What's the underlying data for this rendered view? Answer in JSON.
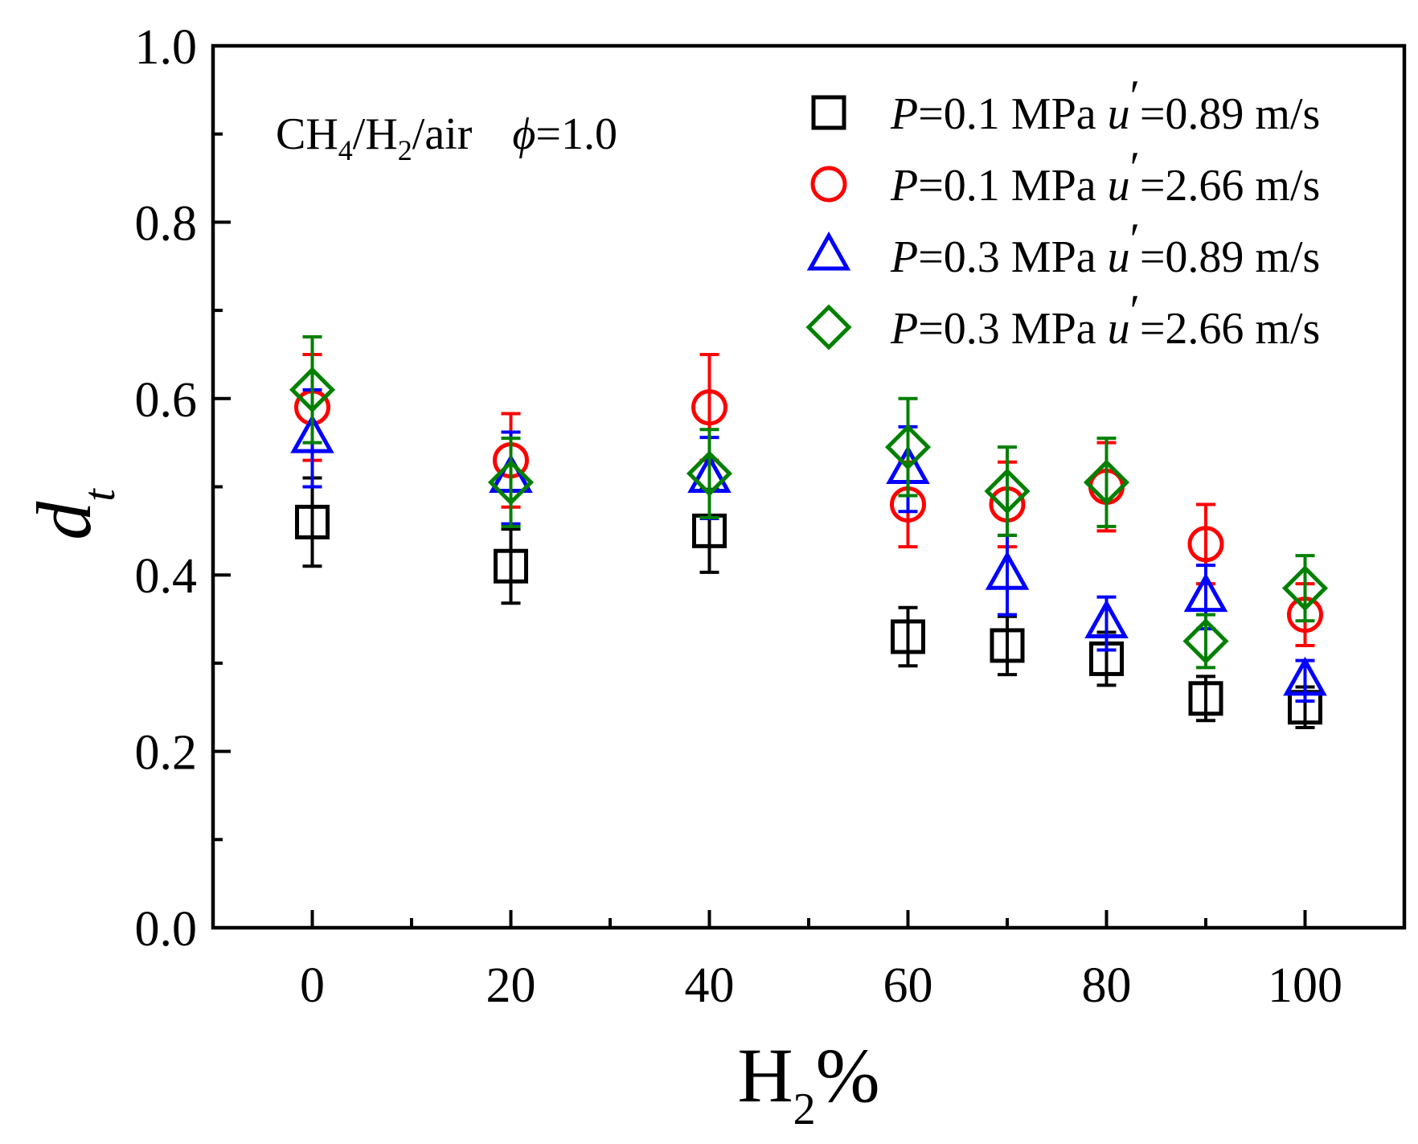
{
  "chart_data": {
    "type": "scatter",
    "title": "",
    "xlabel_main": "H",
    "xlabel_sub": "2",
    "xlabel_tail": "%",
    "ylabel_main": "d",
    "ylabel_sub": "t",
    "xlim": [
      -10,
      110
    ],
    "ylim": [
      0.0,
      1.0
    ],
    "x_ticks": [
      0,
      20,
      40,
      60,
      80,
      100
    ],
    "x_tick_labels": [
      "0",
      "20",
      "40",
      "60",
      "80",
      "100"
    ],
    "x_minor_ticks": [
      10,
      30,
      50,
      70,
      90
    ],
    "y_ticks": [
      0.0,
      0.2,
      0.4,
      0.6,
      0.8,
      1.0
    ],
    "y_tick_labels": [
      "0.0",
      "0.2",
      "0.4",
      "0.6",
      "0.8",
      "1.0"
    ],
    "y_minor_ticks": [
      0.1,
      0.3,
      0.5,
      0.7,
      0.9
    ],
    "grid": false,
    "legend_position": "top-right",
    "annotation": {
      "a": "CH",
      "a_sub": "4",
      "b": "/H",
      "b_sub": "2",
      "c": "/air",
      "phi": "ϕ",
      "phi_val": "=1.0"
    },
    "series": [
      {
        "name_p": "P",
        "name_mid": "=0.1 MPa ",
        "name_u": "u",
        "name_prime": "′",
        "name_tail": "=0.89 m/s",
        "marker": "square",
        "color": "#000000",
        "points": [
          {
            "x": 0,
            "y": 0.46,
            "err": 0.05
          },
          {
            "x": 20,
            "y": 0.41,
            "err": 0.042
          },
          {
            "x": 40,
            "y": 0.45,
            "err": 0.047
          },
          {
            "x": 60,
            "y": 0.33,
            "err": 0.033
          },
          {
            "x": 70,
            "y": 0.32,
            "err": 0.033
          },
          {
            "x": 80,
            "y": 0.305,
            "err": 0.03
          },
          {
            "x": 90,
            "y": 0.26,
            "err": 0.025
          },
          {
            "x": 100,
            "y": 0.25,
            "err": 0.023
          }
        ]
      },
      {
        "name_p": "P",
        "name_mid": "=0.1 MPa ",
        "name_u": "u",
        "name_prime": "′",
        "name_tail": "=2.66 m/s",
        "marker": "circle",
        "color": "#ff0000",
        "points": [
          {
            "x": 0,
            "y": 0.59,
            "err": 0.06
          },
          {
            "x": 20,
            "y": 0.53,
            "err": 0.053
          },
          {
            "x": 40,
            "y": 0.59,
            "err": 0.06
          },
          {
            "x": 60,
            "y": 0.48,
            "err": 0.048
          },
          {
            "x": 70,
            "y": 0.48,
            "err": 0.048
          },
          {
            "x": 80,
            "y": 0.5,
            "err": 0.05
          },
          {
            "x": 90,
            "y": 0.435,
            "err": 0.045
          },
          {
            "x": 100,
            "y": 0.355,
            "err": 0.035
          }
        ]
      },
      {
        "name_p": "P",
        "name_mid": "=0.3 MPa ",
        "name_u": "u",
        "name_prime": "′",
        "name_tail": "=0.89 m/s",
        "marker": "triangle",
        "color": "#0000ff",
        "points": [
          {
            "x": 0,
            "y": 0.555,
            "err": 0.055
          },
          {
            "x": 20,
            "y": 0.51,
            "err": 0.052
          },
          {
            "x": 40,
            "y": 0.51,
            "err": 0.046
          },
          {
            "x": 60,
            "y": 0.52,
            "err": 0.048
          },
          {
            "x": 70,
            "y": 0.4,
            "err": 0.045
          },
          {
            "x": 80,
            "y": 0.345,
            "err": 0.03
          },
          {
            "x": 90,
            "y": 0.375,
            "err": 0.036
          },
          {
            "x": 100,
            "y": 0.28,
            "err": 0.023
          }
        ]
      },
      {
        "name_p": "P",
        "name_mid": "=0.3 MPa ",
        "name_u": "u",
        "name_prime": "′",
        "name_tail": "=2.66 m/s",
        "marker": "diamond",
        "color": "#008000",
        "points": [
          {
            "x": 0,
            "y": 0.61,
            "err": 0.06
          },
          {
            "x": 20,
            "y": 0.505,
            "err": 0.05
          },
          {
            "x": 40,
            "y": 0.515,
            "err": 0.05
          },
          {
            "x": 60,
            "y": 0.545,
            "err": 0.055
          },
          {
            "x": 70,
            "y": 0.495,
            "err": 0.05
          },
          {
            "x": 80,
            "y": 0.505,
            "err": 0.05
          },
          {
            "x": 90,
            "y": 0.325,
            "err": 0.03
          },
          {
            "x": 100,
            "y": 0.385,
            "err": 0.037
          }
        ]
      }
    ]
  }
}
